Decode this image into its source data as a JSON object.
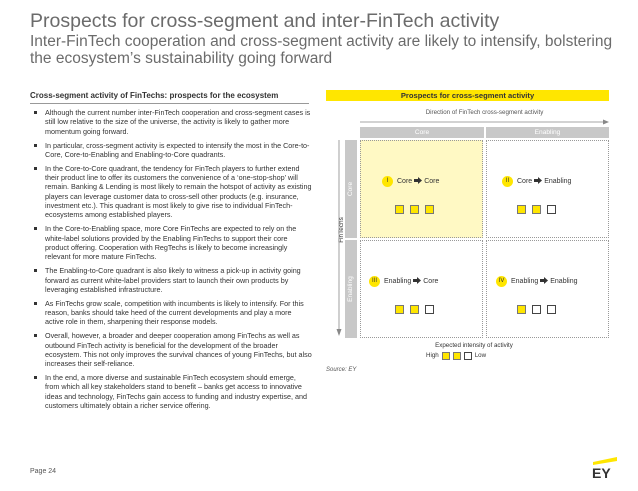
{
  "header": {
    "title": "Prospects for cross-segment and inter-FinTech activity",
    "subtitle": "Inter-FinTech cooperation and cross-segment activity are likely to intensify, bolstering the ecosystem’s sustainability going forward"
  },
  "left": {
    "heading": "Cross-segment activity of FinTechs: prospects for the ecosystem",
    "bullets": [
      "Although the current number inter-FinTech cooperation and cross-segment cases is still low relative to the size of the universe, the activity is likely to gather more momentum going forward.",
      "In particular, cross-segment activity is expected to intensify the most in the Core-to-Core, Core-to-Enabling and Enabling-to-Core quadrants.",
      "In the Core-to-Core quadrant, the tendency for FinTech players to further extend their product line to offer its customers the convenience of a ‘one-stop-shop’ will remain. Banking & Lending is most likely to remain the hotspot of activity as existing players can leverage customer data to cross-sell other products (e.g. insurance, investment etc.). This quadrant is most likely to give rise to individual FinTech-ecosystems among established players.",
      "In the Core-to-Enabling space, more Core FinTechs are expected to rely on the white-label solutions provided by the Enabling FinTechs to support their core product offering. Cooperation with RegTechs is likely to become increasingly relevant for more mature FinTechs.",
      "The Enabling-to-Core quadrant is also likely to witness a pick-up in activity going forward as current white-label providers start to launch their own products by leveraging established infrastructure.",
      "As FinTechs grow scale, competition with incumbents is likely to intensify. For this reason, banks should take heed of the current developments and play a more active role in them, sharpening their response models.",
      "Overall, however, a broader and deeper cooperation among FinTechs as well as outbound FinTech activity is beneficial for the development of the broader ecosystem. This not only improves the survival chances of young FinTechs, but also increases their self-reliance.",
      "In the end, a more diverse and sustainable FinTech ecosystem should emerge, from which all key stakeholders stand to benefit – banks get access to innovative ideas and technology, FinTechs gain access to funding and industry expertise, and customers ultimately obtain a richer service offering."
    ]
  },
  "matrix": {
    "header": "Prospects for cross-segment activity",
    "direction_label": "Direction of FinTech cross-segment activity",
    "columns": [
      "Core",
      "Enabling"
    ],
    "rows": [
      "Core",
      "Enabling"
    ],
    "row_axis_label": "FinTechs",
    "quadrants": [
      {
        "num": "I",
        "from": "Core",
        "to": "Core",
        "filled": 3,
        "total": 3,
        "highlight": true
      },
      {
        "num": "II",
        "from": "Core",
        "to": "Enabling",
        "filled": 2,
        "total": 3,
        "highlight": false
      },
      {
        "num": "III",
        "from": "Enabling",
        "to": "Core",
        "filled": 2,
        "total": 3,
        "highlight": false
      },
      {
        "num": "IV",
        "from": "Enabling",
        "to": "Enabling",
        "filled": 1,
        "total": 3,
        "highlight": false
      }
    ],
    "legend": {
      "title": "Expected intensity of activity",
      "high": "High",
      "low": "Low"
    },
    "source": "Source: EY"
  },
  "footer": {
    "page": "Page 24",
    "logo_text": "EY"
  },
  "colors": {
    "brand_yellow": "#ffe600",
    "highlight_quadrant": "#fff9c4",
    "header_grey": "#c8c8c8",
    "title_grey": "#6b6b6b"
  }
}
